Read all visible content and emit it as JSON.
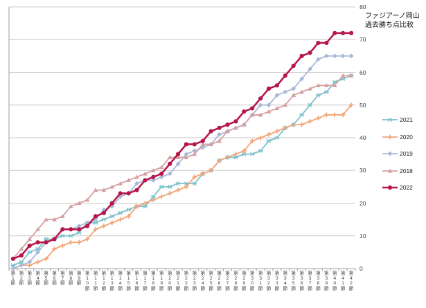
{
  "title": {
    "line1": "ファジアーノ岡山",
    "line2": "過去勝ち点比較"
  },
  "chart_data": {
    "type": "line",
    "title": "ファジアーノ岡山 過去勝ち点比較",
    "xlabel": "",
    "ylabel": "",
    "grid": true,
    "legend_position": "right",
    "y_axis": {
      "min": 0,
      "max": 80,
      "step": 10,
      "position": "right",
      "ticks": [
        0,
        10,
        20,
        30,
        40,
        50,
        60,
        70,
        80
      ]
    },
    "x_axis": {
      "labels": [
        "第1節",
        "第2節",
        "第3節",
        "第4節",
        "第5節",
        "第6節",
        "第7節",
        "第8節",
        "第9節",
        "第10節",
        "第11節",
        "第12節",
        "第13節",
        "第14節",
        "第15節",
        "第16節",
        "第17節",
        "第18節",
        "第19節",
        "第20節",
        "第21節",
        "第22節",
        "第23節",
        "第24節",
        "第25節",
        "第26節",
        "第27節",
        "第28節",
        "第29節",
        "第30節",
        "第31節",
        "第32節",
        "第33節",
        "第34節",
        "第35節",
        "第36節",
        "第37節",
        "第38節",
        "第39節",
        "第40節",
        "第41節",
        "第42節"
      ]
    },
    "series": [
      {
        "name": "2021",
        "color": "#7CC0CC",
        "marker": "asterisk",
        "width": 1.8,
        "values": [
          1,
          2,
          5,
          6,
          9,
          9,
          10,
          10,
          11,
          14,
          14,
          15,
          16,
          17,
          18,
          19,
          19,
          22,
          25,
          25,
          26,
          26,
          26,
          29,
          30,
          33,
          34,
          34,
          35,
          35,
          36,
          39,
          40,
          43,
          44,
          47,
          50,
          53,
          54,
          57,
          58,
          59
        ]
      },
      {
        "name": "2020",
        "color": "#F2A376",
        "marker": "plus",
        "width": 1.8,
        "values": [
          0,
          1,
          1,
          2,
          3,
          6,
          7,
          8,
          8,
          9,
          12,
          13,
          14,
          15,
          16,
          19,
          20,
          21,
          22,
          23,
          24,
          25,
          28,
          29,
          30,
          33,
          34,
          35,
          36,
          39,
          40,
          41,
          42,
          43,
          44,
          44,
          45,
          46,
          47,
          47,
          47,
          50
        ]
      },
      {
        "name": "2019",
        "color": "#AAB8D6",
        "marker": "diamond",
        "width": 1.8,
        "values": [
          0,
          1,
          2,
          5,
          8,
          9,
          12,
          12,
          13,
          14,
          15,
          18,
          19,
          22,
          23,
          26,
          27,
          27,
          28,
          29,
          32,
          35,
          36,
          37,
          38,
          41,
          42,
          43,
          44,
          47,
          50,
          50,
          53,
          54,
          55,
          58,
          61,
          64,
          65,
          65,
          65,
          65
        ]
      },
      {
        "name": "2018",
        "color": "#D5A0A2",
        "marker": "triangle",
        "width": 1.8,
        "values": [
          3,
          6,
          9,
          12,
          15,
          15,
          16,
          19,
          20,
          21,
          24,
          24,
          25,
          26,
          27,
          28,
          29,
          30,
          31,
          34,
          34,
          34,
          35,
          38,
          38,
          39,
          42,
          43,
          44,
          47,
          47,
          48,
          49,
          50,
          53,
          54,
          55,
          56,
          56,
          56,
          59,
          59
        ]
      },
      {
        "name": "2022",
        "color": "#B6164C",
        "marker": "circle",
        "width": 2.6,
        "values": [
          3,
          4,
          7,
          8,
          8,
          9,
          12,
          12,
          12,
          13,
          16,
          17,
          20,
          23,
          23,
          24,
          27,
          28,
          29,
          32,
          35,
          38,
          38,
          39,
          42,
          43,
          44,
          45,
          48,
          49,
          52,
          55,
          56,
          59,
          62,
          65,
          66,
          69,
          69,
          72,
          72,
          72
        ]
      }
    ],
    "colors": {
      "gridline": "#C9C9C9",
      "axis": "#9B9B9B",
      "tick_label": "#3F3F3F"
    }
  }
}
